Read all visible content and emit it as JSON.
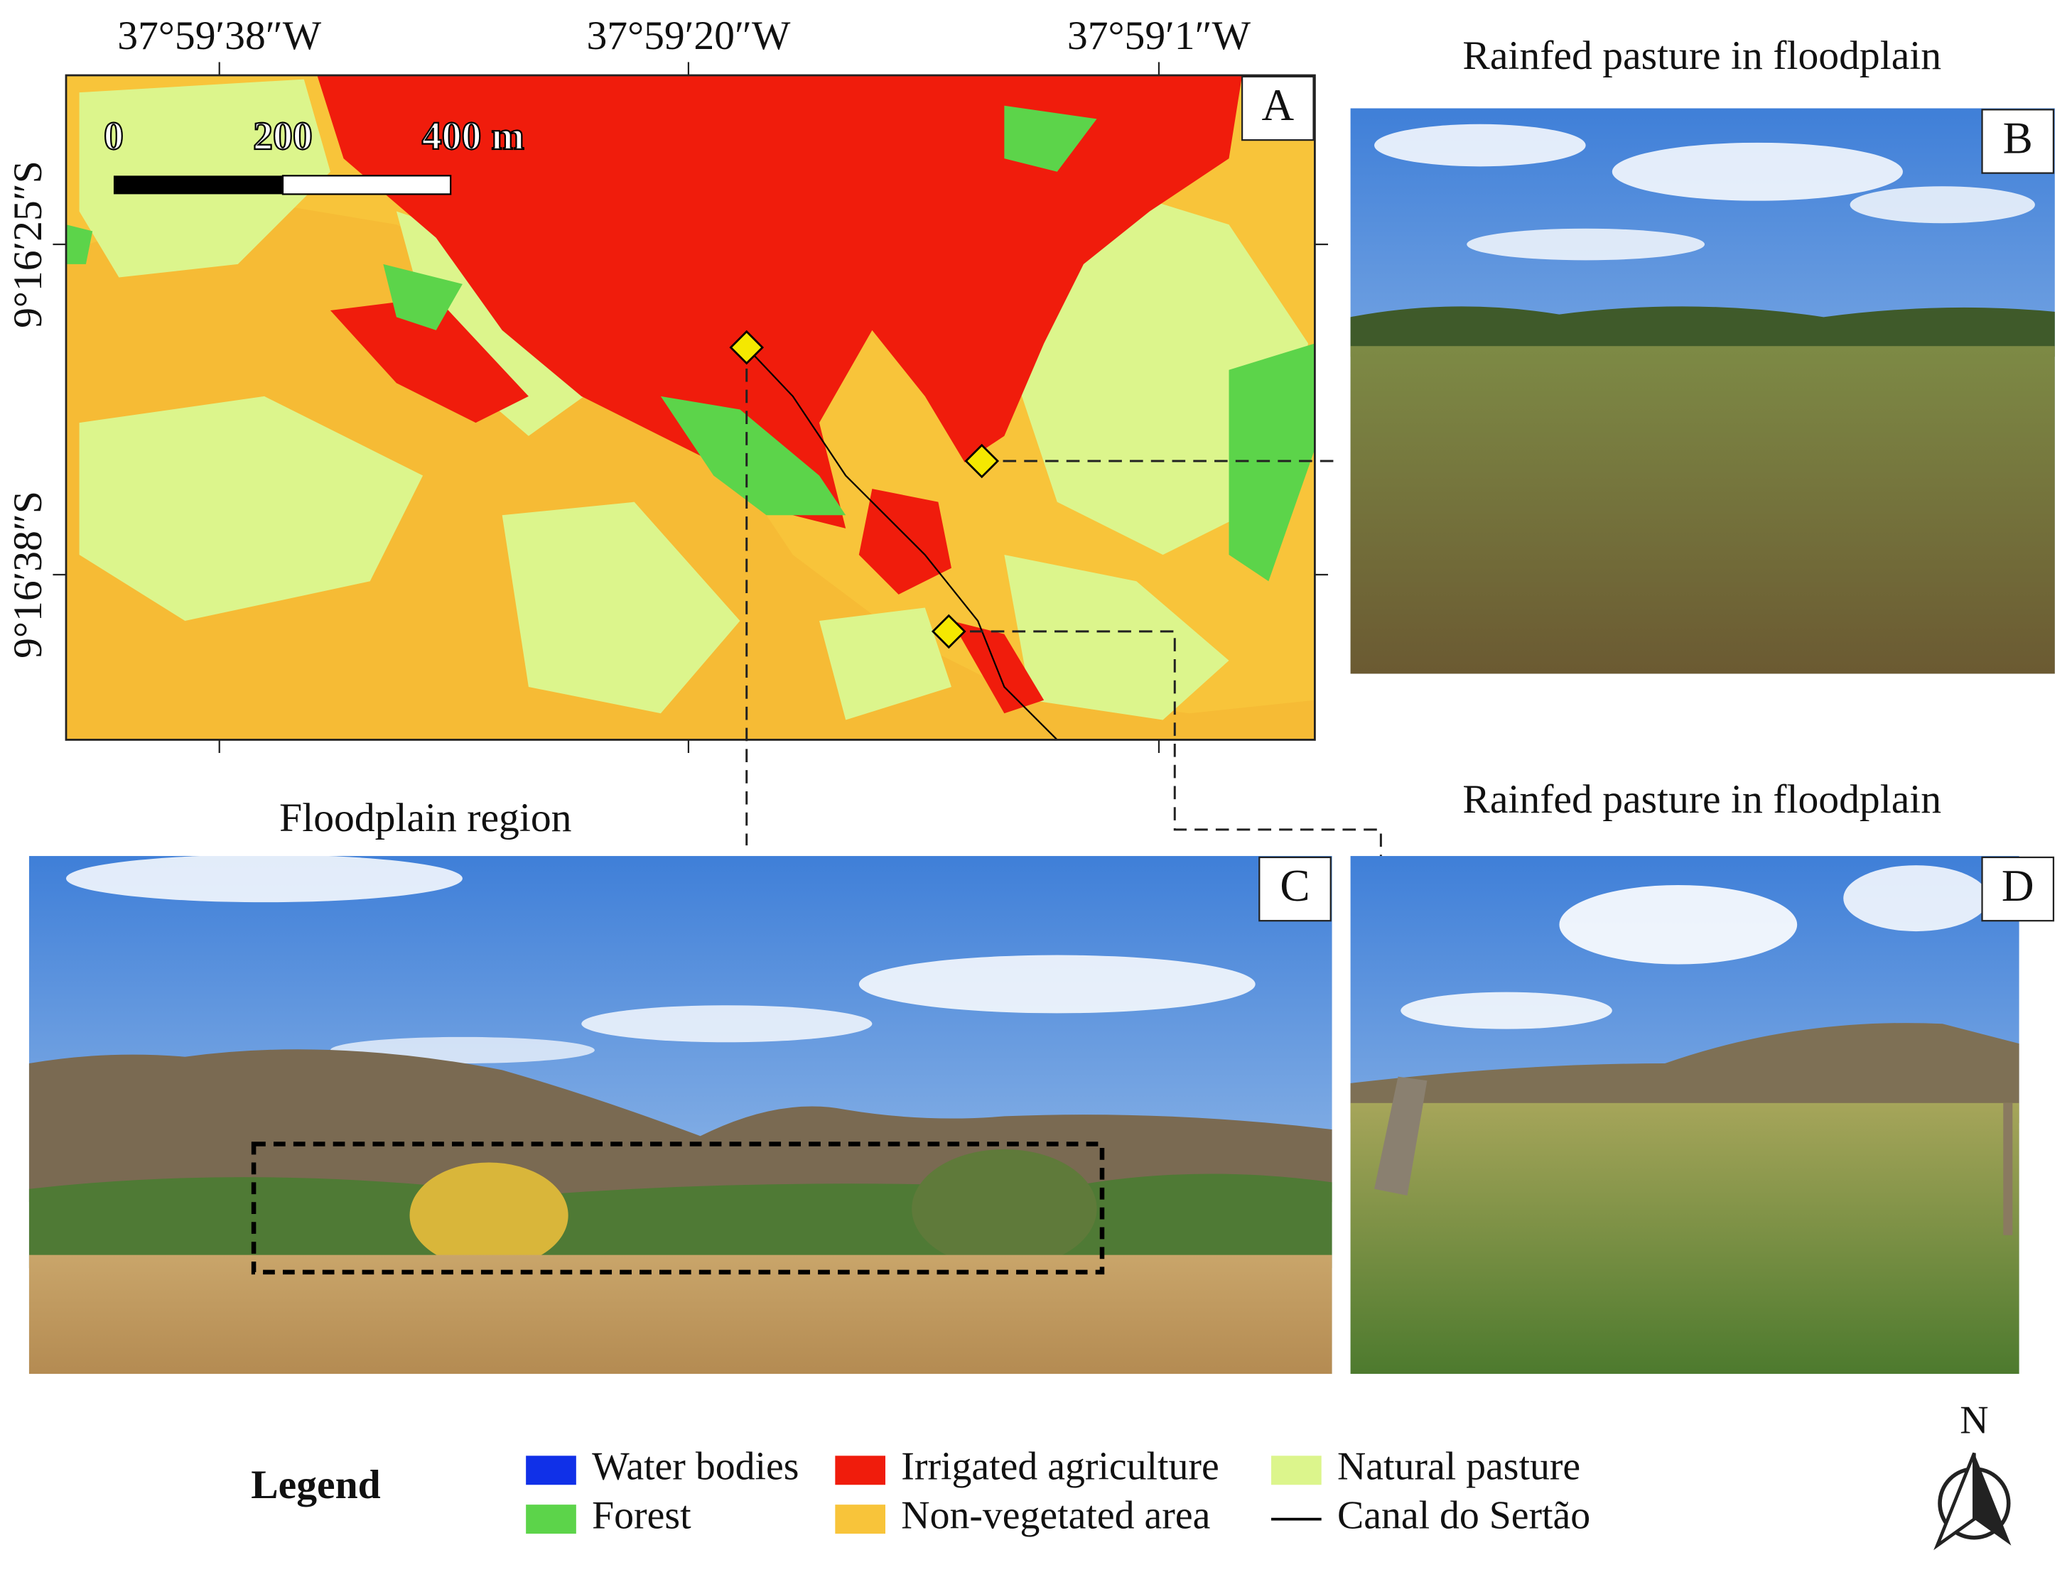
{
  "map": {
    "panel": "A",
    "lon_labels": [
      "37°59′38″W",
      "37°59′20″W",
      "37°59′1″W"
    ],
    "lat_labels": [
      "9°16′25″S",
      "9°16′38″S"
    ],
    "scale_bar": [
      "0",
      "200",
      "400 m"
    ]
  },
  "photos": [
    {
      "panel": "B",
      "title": "Rainfed pasture in floodplain"
    },
    {
      "panel": "C",
      "title": "Floodplain region"
    },
    {
      "panel": "D",
      "title": "Rainfed pasture in floodplain"
    }
  ],
  "legend": {
    "title": "Legend",
    "items": [
      {
        "label": "Water bodies",
        "color": "#1030e8"
      },
      {
        "label": "Forest",
        "color": "#5cd44a"
      },
      {
        "label": "Irrigated agriculture",
        "color": "#f01c0c"
      },
      {
        "label": "Non-vegetated area",
        "color": "#f8c43a"
      },
      {
        "label": "Natural pasture",
        "color": "#dcf58c"
      },
      {
        "label": "Canal do Sertão",
        "color": "#000000",
        "symbol": "line"
      }
    ]
  },
  "north": "N"
}
